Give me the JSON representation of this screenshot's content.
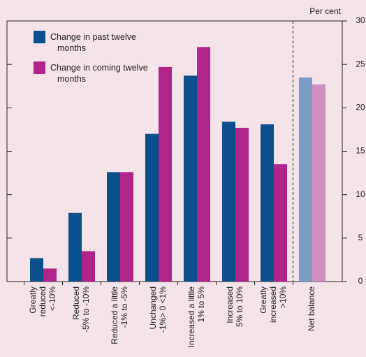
{
  "chart_data": {
    "type": "bar",
    "y_axis_label": "Per cent",
    "categories": [
      [
        "Greatly",
        "reduced",
        "<-10%"
      ],
      [
        "Reduced",
        "-5% to -10%"
      ],
      [
        "Reduced a little",
        "-1% to -5%"
      ],
      [
        "Unchanged",
        "-1%> 0 <1%"
      ],
      [
        "Increased a little",
        "1% to 5%"
      ],
      [
        "Increased",
        "5% to 10%"
      ],
      [
        "Greatly",
        "increased",
        ">10%"
      ],
      [
        "Net balance"
      ]
    ],
    "series": [
      {
        "name": "Change in past twelve months",
        "color": "#0b4f8c",
        "colors": [
          "#0b4f8c",
          "#0b4f8c",
          "#0b4f8c",
          "#0b4f8c",
          "#0b4f8c",
          "#0b4f8c",
          "#0b4f8c",
          "#7b9dc6"
        ],
        "values": [
          2.7,
          7.9,
          12.6,
          17.0,
          23.7,
          18.4,
          18.1,
          23.5
        ]
      },
      {
        "name": "Change in coming twelve months",
        "color": "#b1248b",
        "colors": [
          "#b1248b",
          "#b1248b",
          "#b1248b",
          "#b1248b",
          "#b1248b",
          "#b1248b",
          "#b1248b",
          "#d08fc1"
        ],
        "values": [
          1.5,
          3.5,
          12.6,
          24.7,
          27.0,
          17.7,
          13.5,
          22.7
        ]
      }
    ],
    "ylim": [
      0,
      30
    ],
    "yticks": [
      0,
      5,
      10,
      15,
      20,
      25,
      30
    ],
    "y_axis_side": "right"
  }
}
